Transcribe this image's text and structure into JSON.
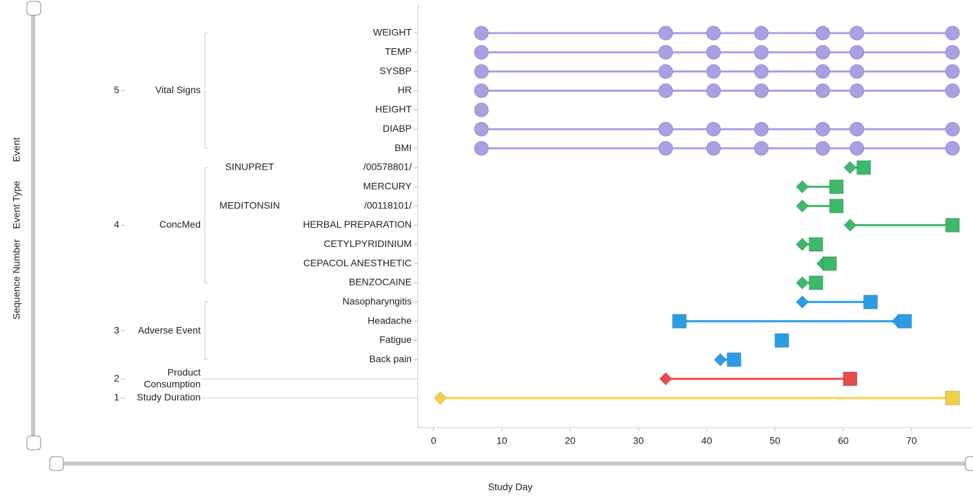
{
  "chart_data": {
    "type": "timeline",
    "xlabel": "Study Day",
    "ylabels": [
      "Sequence Number",
      "Event Type",
      "Event"
    ],
    "xlim": [
      -2.2,
      78.9
    ],
    "xticks": [
      0,
      10,
      20,
      30,
      40,
      50,
      60,
      70
    ],
    "groups": [
      {
        "seq": 5,
        "type": [
          "Vital Signs"
        ],
        "color": "#ab9fe0",
        "marker": "circle",
        "events": [
          {
            "name": "WEIGHT",
            "x": [
              7,
              34,
              41,
              48,
              57,
              62,
              76
            ]
          },
          {
            "name": "TEMP",
            "x": [
              7,
              34,
              41,
              48,
              57,
              62,
              76
            ]
          },
          {
            "name": "SYSBP",
            "x": [
              7,
              34,
              41,
              48,
              57,
              62,
              76
            ]
          },
          {
            "name": "HR",
            "x": [
              7,
              34,
              41,
              48,
              57,
              62,
              76
            ]
          },
          {
            "name": "HEIGHT",
            "x": [
              7
            ]
          },
          {
            "name": "DIABP",
            "x": [
              7,
              34,
              41,
              48,
              57,
              62,
              76
            ]
          },
          {
            "name": "BMI",
            "x": [
              7,
              34,
              41,
              48,
              57,
              62,
              76
            ]
          }
        ]
      },
      {
        "seq": 4,
        "type": [
          "ConcMed"
        ],
        "color": "#3cb96b",
        "events": [
          {
            "drug": "SINUPRET",
            "name": "/00578801/",
            "x": [
              61,
              63
            ],
            "shapes": [
              "diamond",
              "square"
            ]
          },
          {
            "name": "MERCURY",
            "x": [
              54,
              59
            ],
            "shapes": [
              "diamond",
              "square"
            ]
          },
          {
            "drug": "MEDITONSIN",
            "name": "/00118101/",
            "x": [
              54,
              59
            ],
            "shapes": [
              "diamond",
              "square"
            ]
          },
          {
            "name": "HERBAL PREPARATION",
            "x": [
              61,
              76
            ],
            "shapes": [
              "diamond",
              "square"
            ]
          },
          {
            "name": "CETYLPYRIDINIUM",
            "x": [
              54,
              56
            ],
            "shapes": [
              "diamond",
              "square"
            ]
          },
          {
            "name": "CEPACOL ANESTHETIC",
            "x": [
              57,
              58
            ],
            "shapes": [
              "diamond",
              "square"
            ]
          },
          {
            "name": "BENZOCAINE",
            "x": [
              54,
              56
            ],
            "shapes": [
              "diamond",
              "square"
            ]
          }
        ]
      },
      {
        "seq": 3,
        "type": [
          "Adverse Event"
        ],
        "color": "#2b9de6",
        "events": [
          {
            "name": "Nasopharyngitis",
            "x": [
              54,
              64
            ],
            "shapes": [
              "diamond",
              "square"
            ]
          },
          {
            "name": "Headache",
            "x": [
              36,
              68,
              69
            ],
            "shapes": [
              "square",
              "diamond",
              "square"
            ]
          },
          {
            "name": "Fatigue",
            "x": [
              51
            ],
            "shapes": [
              "square"
            ]
          },
          {
            "name": "Back pain",
            "x": [
              42,
              44
            ],
            "shapes": [
              "diamond",
              "square"
            ]
          }
        ]
      },
      {
        "seq": 2,
        "type": [
          "Product",
          "Consumption"
        ],
        "color": "#e84b4b",
        "events": [
          {
            "x": [
              34,
              61
            ],
            "shapes": [
              "diamond",
              "square"
            ]
          }
        ]
      },
      {
        "seq": 1,
        "type": [
          "Study Duration"
        ],
        "color": "#f3cf45",
        "events": [
          {
            "x": [
              1,
              76
            ],
            "shapes": [
              "diamond",
              "square"
            ]
          }
        ]
      }
    ]
  }
}
